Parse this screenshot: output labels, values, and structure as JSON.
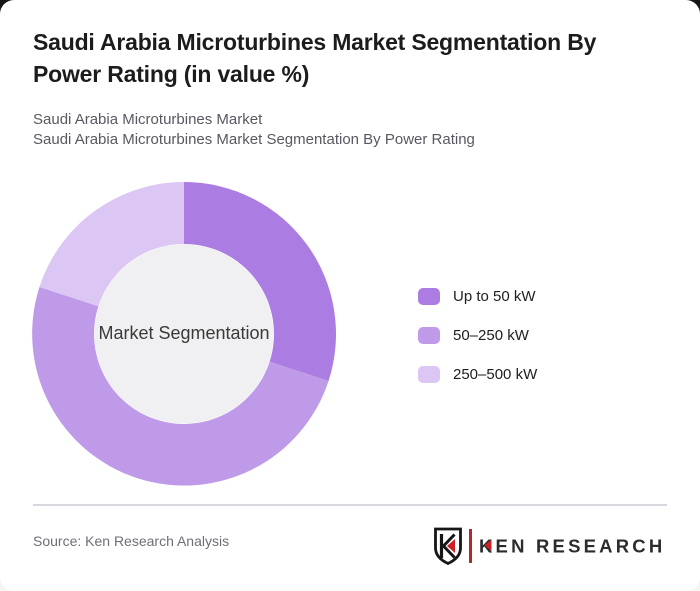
{
  "header": {
    "title": "Saudi Arabia Microturbines Market Segmentation By Power Rating (in value %)",
    "title_line1": "Saudi Arabia Microturbines Market Segmentation By",
    "title_line2": "Power Rating (in value %)",
    "subtitle_line1": "Saudi Arabia Microturbines Market",
    "subtitle_line2": "Saudi Arabia Microturbines Market Segmentation By Power Rating"
  },
  "chart_data": {
    "type": "pie",
    "variant": "donut",
    "title": "Saudi Arabia Microturbines Market Segmentation By Power Rating (in value %)",
    "center_label": "Market Segmentation",
    "categories": [
      "Up to 50 kW",
      "50–250 kW",
      "250–500 kW"
    ],
    "values": [
      30,
      50,
      20
    ],
    "unit": "%",
    "colors": [
      "#ab7ce1",
      "#bf9ae9",
      "#dcc6f3"
    ],
    "hole_color": "#f0eff1",
    "start_angle_deg": 0,
    "direction": "clockwise",
    "legend_position": "right",
    "geometry": {
      "outer_radius": 152,
      "inner_radius": 90
    }
  },
  "legend": {
    "items": [
      {
        "label": "Up to 50 kW",
        "color": "#ab7ce1"
      },
      {
        "label": "50–250 kW",
        "color": "#bf9ae9"
      },
      {
        "label": "250–500 kW",
        "color": "#dcc6f3"
      }
    ]
  },
  "footer": {
    "source": "Source: Ken Research Analysis",
    "logo": {
      "wordmark": "KEN RESEARCH",
      "icon_letter": "K",
      "accent_color": "#cf2027",
      "text_color": "#2c2c2e"
    }
  }
}
